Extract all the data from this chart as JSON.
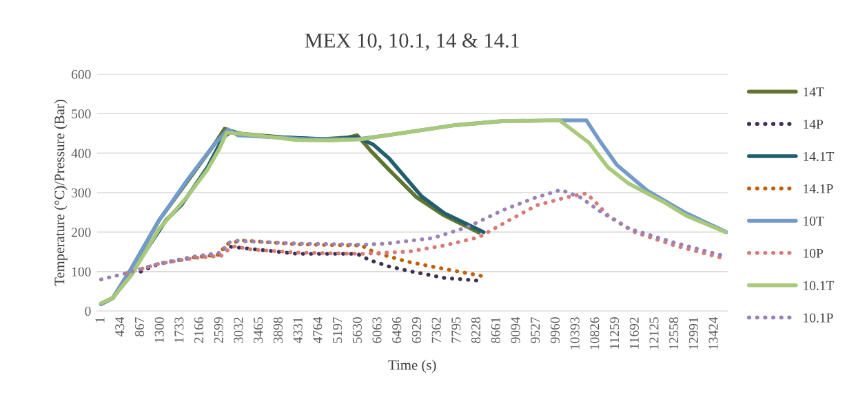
{
  "chart_data": {
    "type": "line",
    "title": "MEX 10, 10.1, 14 & 14.1",
    "xlabel": "Time (s)",
    "ylabel": "Temperature (°C)/Pressure (Bar)",
    "xlim": [
      -90,
      13710
    ],
    "xticks": [
      1,
      434,
      867,
      1300,
      1733,
      2166,
      2599,
      3032,
      3465,
      3898,
      4331,
      4764,
      5197,
      5630,
      6063,
      6496,
      6929,
      7362,
      7795,
      8228,
      8661,
      9094,
      9527,
      9960,
      10393,
      10826,
      11259,
      11692,
      12125,
      12558,
      12991,
      13424
    ],
    "ylim": [
      0,
      600
    ],
    "yticks": [
      0,
      100,
      200,
      300,
      400,
      500,
      600
    ],
    "grid": "y",
    "legend": "right",
    "marker": "none",
    "series": [
      {
        "name": "14T",
        "color": "#5f7530",
        "line_style": "solid",
        "x": [
          0,
          257,
          665,
          1270,
          2478,
          2705,
          3000,
          4000,
          4800,
          5400,
          5606,
          5908,
          6300,
          6906,
          7510,
          8265
        ],
        "values": [
          18,
          33,
          108,
          230,
          422,
          462,
          450,
          440,
          435,
          440,
          445,
          405,
          358,
          288,
          242,
          199
        ]
      },
      {
        "name": "14P",
        "color": "#3f3151",
        "line_style": "dotted",
        "x": [
          867,
          1270,
          2025,
          2584,
          2735,
          3083,
          4290,
          5606,
          5878,
          6300,
          6754,
          7510,
          8265
        ],
        "values": [
          100,
          120,
          136,
          143,
          164,
          160,
          145,
          145,
          129,
          113,
          101,
          84,
          77
        ]
      },
      {
        "name": "14.1T",
        "color": "#215f6e",
        "line_style": "solid",
        "x": [
          0,
          257,
          665,
          1420,
          1768,
          2327,
          2675,
          2850,
          3200,
          4000,
          5000,
          5600,
          5953,
          6300,
          7011,
          7510,
          8371
        ],
        "values": [
          18,
          33,
          97,
          230,
          270,
          364,
          440,
          455,
          445,
          440,
          435,
          440,
          422,
          387,
          291,
          248,
          200
        ]
      },
      {
        "name": "14.1P",
        "color": "#c0600a",
        "line_style": "dotted",
        "x": [
          2025,
          2584,
          2735,
          3083,
          4290,
          5697,
          6000,
          6709,
          7268,
          8326
        ],
        "values": [
          136,
          143,
          169,
          179,
          169,
          166,
          148,
          125,
          112,
          89
        ]
      },
      {
        "name": "10T",
        "color": "#729aca",
        "line_style": "solid",
        "x": [
          0,
          257,
          665,
          1270,
          1874,
          2478,
          2780,
          3000,
          3840,
          4500,
          5600,
          6255,
          7766,
          8780,
          9988,
          10620,
          10895,
          11288,
          11952,
          12800,
          13690
        ],
        "values": [
          18,
          33,
          108,
          230,
          330,
          422,
          460,
          445,
          440,
          435,
          435,
          445,
          471,
          481,
          483,
          483,
          434,
          370,
          305,
          248,
          200
        ]
      },
      {
        "name": "10P",
        "color": "#d77b78",
        "line_style": "dotted",
        "x": [
          560,
          1270,
          2025,
          2630,
          2780,
          2931,
          3280,
          4290,
          5697,
          6255,
          6754,
          7510,
          8265,
          8930,
          9534,
          10184,
          10622,
          10819,
          11091,
          11695,
          12556,
          13629
        ],
        "values": [
          96,
          120,
          134,
          140,
          155,
          164,
          156,
          148,
          145,
          148,
          151,
          166,
          187,
          230,
          268,
          288,
          298,
          276,
          242,
          199,
          166,
          133
        ]
      },
      {
        "name": "10.1T",
        "color": "#a9c97a",
        "line_style": "solid",
        "x": [
          0,
          257,
          665,
          1270,
          1874,
          2327,
          2584,
          2750,
          3000,
          3800,
          4300,
          5000,
          5700,
          6255,
          7766,
          8780,
          10033,
          10592,
          10683,
          11091,
          11544,
          12300,
          12800,
          13660
        ],
        "values": [
          20,
          33,
          91,
          208,
          288,
          358,
          410,
          452,
          450,
          440,
          433,
          432,
          435,
          445,
          471,
          481,
          483,
          434,
          426,
          364,
          323,
          277,
          242,
          200
        ]
      },
      {
        "name": "10.1P",
        "color": "#9a82b5",
        "line_style": "dotted",
        "x": [
          0,
          560,
          1270,
          2025,
          2630,
          2780,
          2977,
          4290,
          5757,
          6255,
          7268,
          8023,
          8779,
          9474,
          10063,
          10487,
          10940,
          11544,
          12556,
          13614
        ],
        "values": [
          80,
          96,
          120,
          138,
          148,
          173,
          178,
          171,
          168,
          171,
          185,
          213,
          255,
          286,
          307,
          288,
          251,
          209,
          173,
          140
        ]
      }
    ]
  }
}
